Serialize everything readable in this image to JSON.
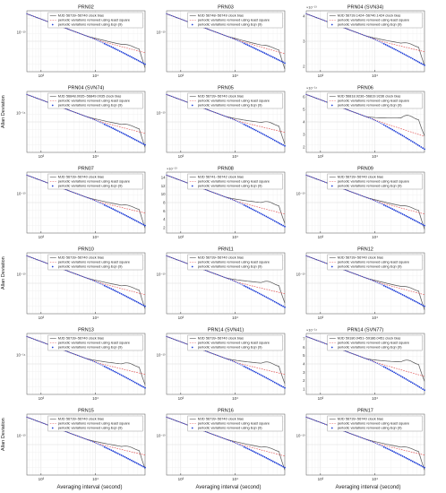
{
  "figure": {
    "ylabel": "Allan Deviation",
    "xlabel": "Averaging interval (second)",
    "ylabel_rows": [
      1,
      3,
      5
    ],
    "xlabel_cols": [
      0,
      1,
      2
    ]
  },
  "chart_data": [
    {
      "type": "line",
      "title": "PRN02",
      "legend": [
        "MJD 56739~56740 clock bias",
        "periodic variations removed using least square",
        "periodic variations removed using Eqn (9)"
      ],
      "x_ticks": [
        "10³",
        "10⁴"
      ],
      "y_ticks": [
        "10⁻¹³"
      ],
      "y_exponent": "",
      "bump": 0.35,
      "spread": 0.3,
      "tail": 0.25
    },
    {
      "type": "line",
      "title": "PRN03",
      "legend": [
        "MJD 56748~56749 clock bias",
        "periodic variations removed using least square",
        "periodic variations removed using Eqn (9)"
      ],
      "x_ticks": [
        "10³",
        "10⁴"
      ],
      "y_ticks": [
        "10⁻¹³"
      ],
      "y_exponent": "",
      "bump": 0.3,
      "spread": 0.25,
      "tail": 0.2
    },
    {
      "type": "line",
      "title": "PRN04 (SVN34)",
      "legend": [
        "MJD 56739.1424~56740.1424 clock bias",
        "periodic variations removed using least square",
        "periodic variations removed using Eqn (9)"
      ],
      "x_ticks": [
        "10³",
        "10⁴"
      ],
      "y_ticks": [
        "4",
        "3",
        "2"
      ],
      "y_exponent": "×10⁻¹³",
      "bump": 0.45,
      "spread": 0.35,
      "tail": 0.3
    },
    {
      "type": "line",
      "title": "PRN04 (SVN74)",
      "legend": [
        "MJD 56848.0035~56849.0035 clock bias",
        "periodic variations removed using least square",
        "periodic variations removed using Eqn (9)"
      ],
      "x_ticks": [
        "10³",
        "10⁴"
      ],
      "y_ticks": [
        "10⁻¹⁴"
      ],
      "y_exponent": "",
      "bump": 0.4,
      "spread": 0.3,
      "tail": 0.25
    },
    {
      "type": "line",
      "title": "PRN05",
      "legend": [
        "MJD 56739~56740 clock bias",
        "periodic variations removed using least square",
        "periodic variations removed using Eqn (9)"
      ],
      "x_ticks": [
        "10³",
        "10⁴"
      ],
      "y_ticks": [
        "10⁻¹³"
      ],
      "y_exponent": "",
      "bump": 0.55,
      "spread": 0.35,
      "tail": 0.3
    },
    {
      "type": "line",
      "title": "PRN06",
      "legend": [
        "MJD 56818.9236~56819.9236 clock bias",
        "periodic variations removed using least square",
        "periodic variations removed using Eqn (9)"
      ],
      "x_ticks": [
        "10³",
        "10⁴"
      ],
      "y_ticks": [
        "6",
        "5",
        "4",
        "3",
        "2"
      ],
      "y_exponent": "×10⁻¹⁴",
      "bump": 0.9,
      "spread": 0.5,
      "tail": 0.1
    },
    {
      "type": "line",
      "title": "PRN07",
      "legend": [
        "MJD 56739~56740 clock bias",
        "periodic variations removed using least square",
        "periodic variations removed using Eqn (9)"
      ],
      "x_ticks": [
        "10³",
        "10⁴"
      ],
      "y_ticks": [
        "10⁻¹³"
      ],
      "y_exponent": "",
      "bump": 0.4,
      "spread": 0.3,
      "tail": 0.3
    },
    {
      "type": "line",
      "title": "PRN08",
      "legend": [
        "MJD 56741~56742 clock bias",
        "periodic variations removed using least square",
        "periodic variations removed using Eqn (9)"
      ],
      "x_ticks": [
        "10³",
        "10⁴"
      ],
      "y_ticks": [
        "14",
        "12",
        "10",
        "8",
        "6",
        "4",
        "2"
      ],
      "y_exponent": "×10⁻¹³",
      "bump": 0.6,
      "spread": 0.35,
      "tail": 0.25
    },
    {
      "type": "line",
      "title": "PRN09",
      "legend": [
        "MJD 56739~56740 clock bias",
        "periodic variations removed using least square",
        "periodic variations removed using Eqn (9)"
      ],
      "x_ticks": [
        "10³",
        "10⁴"
      ],
      "y_ticks": [
        "10⁻¹³"
      ],
      "y_exponent": "",
      "bump": 0.35,
      "spread": 0.3,
      "tail": 0.25
    },
    {
      "type": "line",
      "title": "PRN10",
      "legend": [
        "MJD 56739~56740 clock bias",
        "periodic variations removed using least square",
        "periodic variations removed using Eqn (9)"
      ],
      "x_ticks": [
        "10³",
        "10⁴"
      ],
      "y_ticks": [
        "10⁻¹³"
      ],
      "y_exponent": "",
      "bump": 0.4,
      "spread": 0.3,
      "tail": 0.25
    },
    {
      "type": "line",
      "title": "PRN11",
      "legend": [
        "MJD 56739~56740 clock bias",
        "periodic variations removed using least square",
        "periodic variations removed using Eqn (9)"
      ],
      "x_ticks": [
        "10³",
        "10⁴"
      ],
      "y_ticks": [
        "10⁻¹³"
      ],
      "y_exponent": "",
      "bump": 0.65,
      "spread": 0.35,
      "tail": 0.3
    },
    {
      "type": "line",
      "title": "PRN12",
      "legend": [
        "MJD 56739~56740 clock bias",
        "periodic variations removed using least square",
        "periodic variations removed using Eqn (9)"
      ],
      "x_ticks": [
        "10³",
        "10⁴"
      ],
      "y_ticks": [
        "10⁻¹³"
      ],
      "y_exponent": "",
      "bump": 0.35,
      "spread": 0.3,
      "tail": 0.25
    },
    {
      "type": "line",
      "title": "PRN13",
      "legend": [
        "MJD 56739~56740 clock bias",
        "periodic variations removed using least square",
        "periodic variations removed using Eqn (9)"
      ],
      "x_ticks": [
        "10³",
        "10⁴"
      ],
      "y_ticks": [
        "10⁻¹⁴"
      ],
      "y_exponent": "",
      "bump": 0.6,
      "spread": 0.35,
      "tail": 0.3
    },
    {
      "type": "line",
      "title": "PRN14 (SVN41)",
      "legend": [
        "MJD 56739~56740 clock bias",
        "periodic variations removed using least square",
        "periodic variations removed using Eqn (9)"
      ],
      "x_ticks": [
        "10³",
        "10⁴"
      ],
      "y_ticks": [
        "10⁻¹³"
      ],
      "y_exponent": "",
      "bump": 0.65,
      "spread": 0.35,
      "tail": 0.3
    },
    {
      "type": "line",
      "title": "PRN14 (SVN77)",
      "legend": [
        "MJD 59180.0451~59186.0451 clock bias",
        "periodic variations removed using least square",
        "periodic variations removed using Eqn (9)"
      ],
      "x_ticks": [
        "10³",
        "10⁴"
      ],
      "y_ticks": [
        "7",
        "6",
        "5",
        "4",
        "3",
        "2",
        "1"
      ],
      "y_exponent": "×10⁻¹⁴",
      "bump": 0.75,
      "spread": 0.45,
      "tail": 0.2
    },
    {
      "type": "line",
      "title": "PRN15",
      "legend": [
        "MJD 56739~56740 clock bias",
        "periodic variations removed using least square",
        "periodic variations removed using Eqn (9)"
      ],
      "x_ticks": [
        "10³",
        "10⁴"
      ],
      "y_ticks": [
        "10⁻¹³"
      ],
      "y_exponent": "",
      "bump": 0.45,
      "spread": 0.3,
      "tail": 0.3
    },
    {
      "type": "line",
      "title": "PRN16",
      "legend": [
        "MJD 56739~56740 clock bias",
        "periodic variations removed using least square",
        "periodic variations removed using Eqn (9)"
      ],
      "x_ticks": [
        "10³",
        "10⁴"
      ],
      "y_ticks": [
        "10⁻¹³"
      ],
      "y_exponent": "",
      "bump": 0.4,
      "spread": 0.3,
      "tail": 0.25
    },
    {
      "type": "line",
      "title": "PRN17",
      "legend": [
        "MJD 56739~56740 clock bias",
        "periodic variations removed using least square",
        "periodic variations removed using Eqn (9)"
      ],
      "x_ticks": [
        "10³",
        "10⁴"
      ],
      "y_ticks": [
        "10⁻¹³"
      ],
      "y_exponent": "",
      "bump": 0.4,
      "spread": 0.3,
      "tail": 0.3
    }
  ]
}
